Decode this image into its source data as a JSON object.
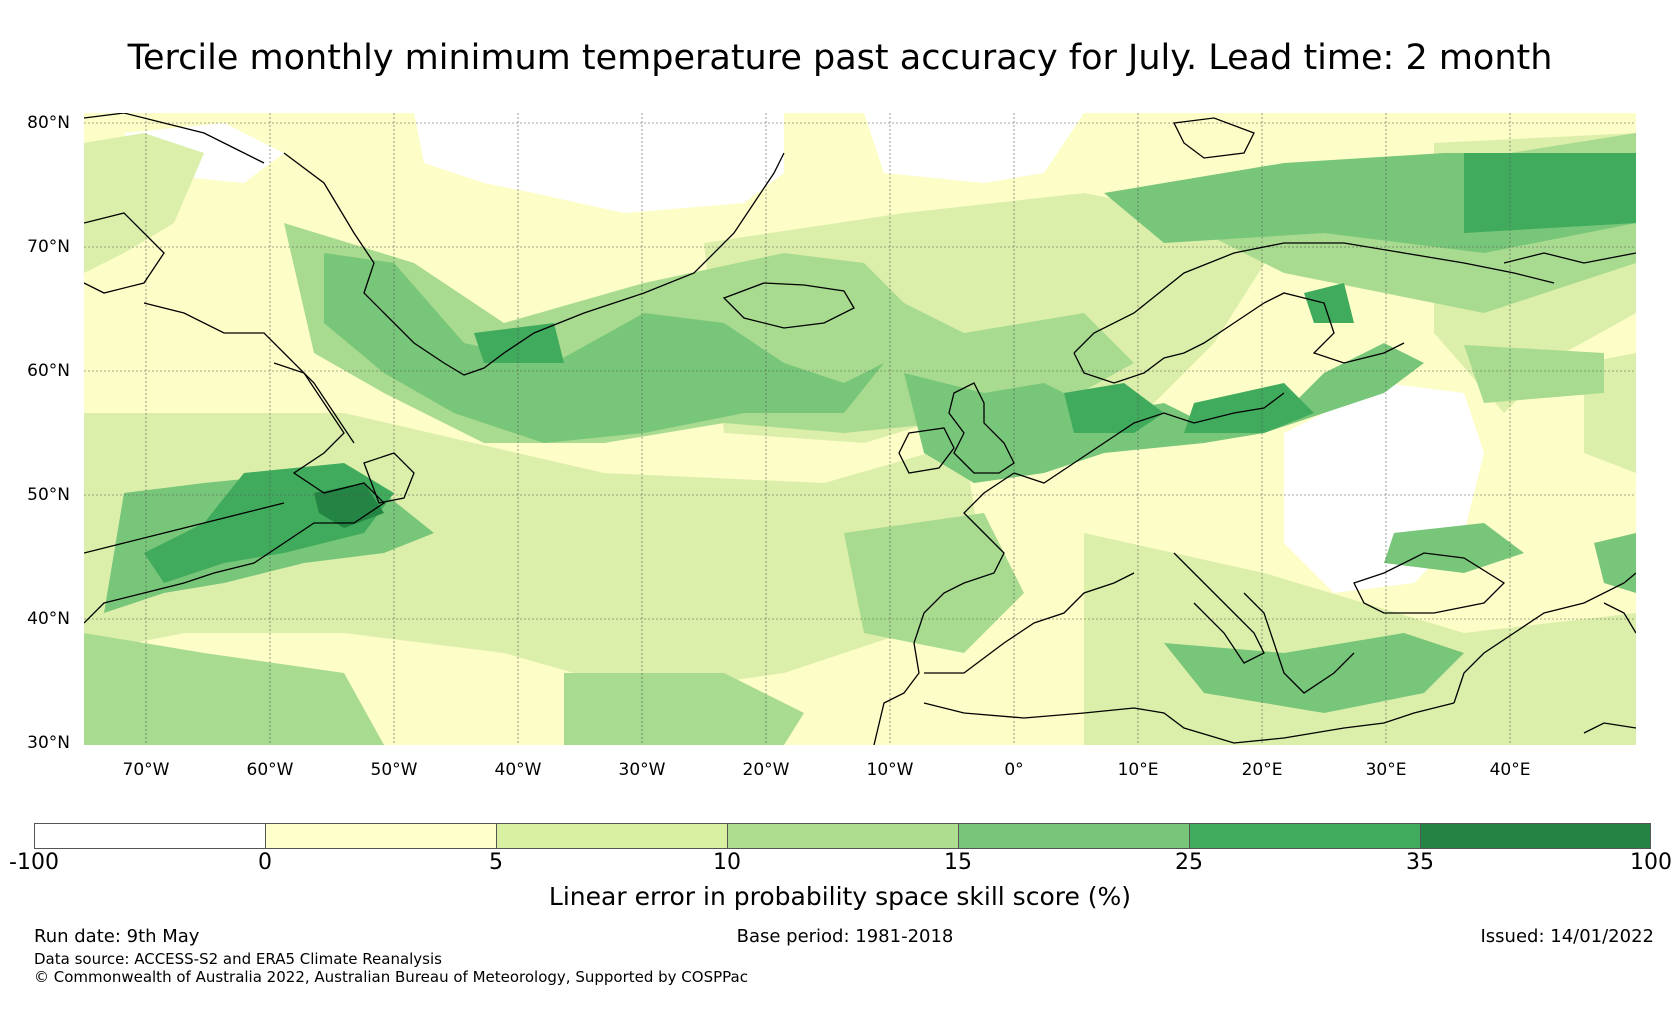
{
  "title": "Tercile monthly minimum temperature past accuracy for July. Lead time: 2 month",
  "map": {
    "lat_labels": [
      "80°N",
      "70°N",
      "60°N",
      "50°N",
      "40°N",
      "30°N"
    ],
    "lon_labels": [
      "70°W",
      "60°W",
      "50°W",
      "40°W",
      "30°W",
      "20°W",
      "10°W",
      "0°",
      "10°E",
      "20°E",
      "30°E",
      "40°E"
    ],
    "lat_range": [
      30,
      81
    ],
    "lon_range": [
      -75,
      50
    ],
    "colors": {
      "background": "#fdfdc8",
      "light_green": "#dcefaa",
      "mid_green": "#a8db8f",
      "green": "#78c679",
      "dark_green": "#41ab5d",
      "darkest_green": "#238443",
      "coastline": "#000000",
      "grid": "#555555"
    }
  },
  "colorbar": {
    "ticks": [
      "-100",
      "0",
      "5",
      "10",
      "15",
      "25",
      "35",
      "100"
    ],
    "colors": [
      "#ffffff",
      "#ffffcc",
      "#d9f0a3",
      "#addd8e",
      "#78c679",
      "#41ab5d",
      "#238443"
    ],
    "label": "Linear error in probability space skill score (%)"
  },
  "footer": {
    "run_date": "Run date: 9th May",
    "base_period": "Base period: 1981-2018",
    "issued": "Issued: 14/01/2022",
    "data_source": "Data source: ACCESS-S2 and ERA5 Climate Reanalysis",
    "copyright": "© Commonwealth of Australia 2022, Australian Bureau of Meteorology, Supported by COSPPac"
  }
}
